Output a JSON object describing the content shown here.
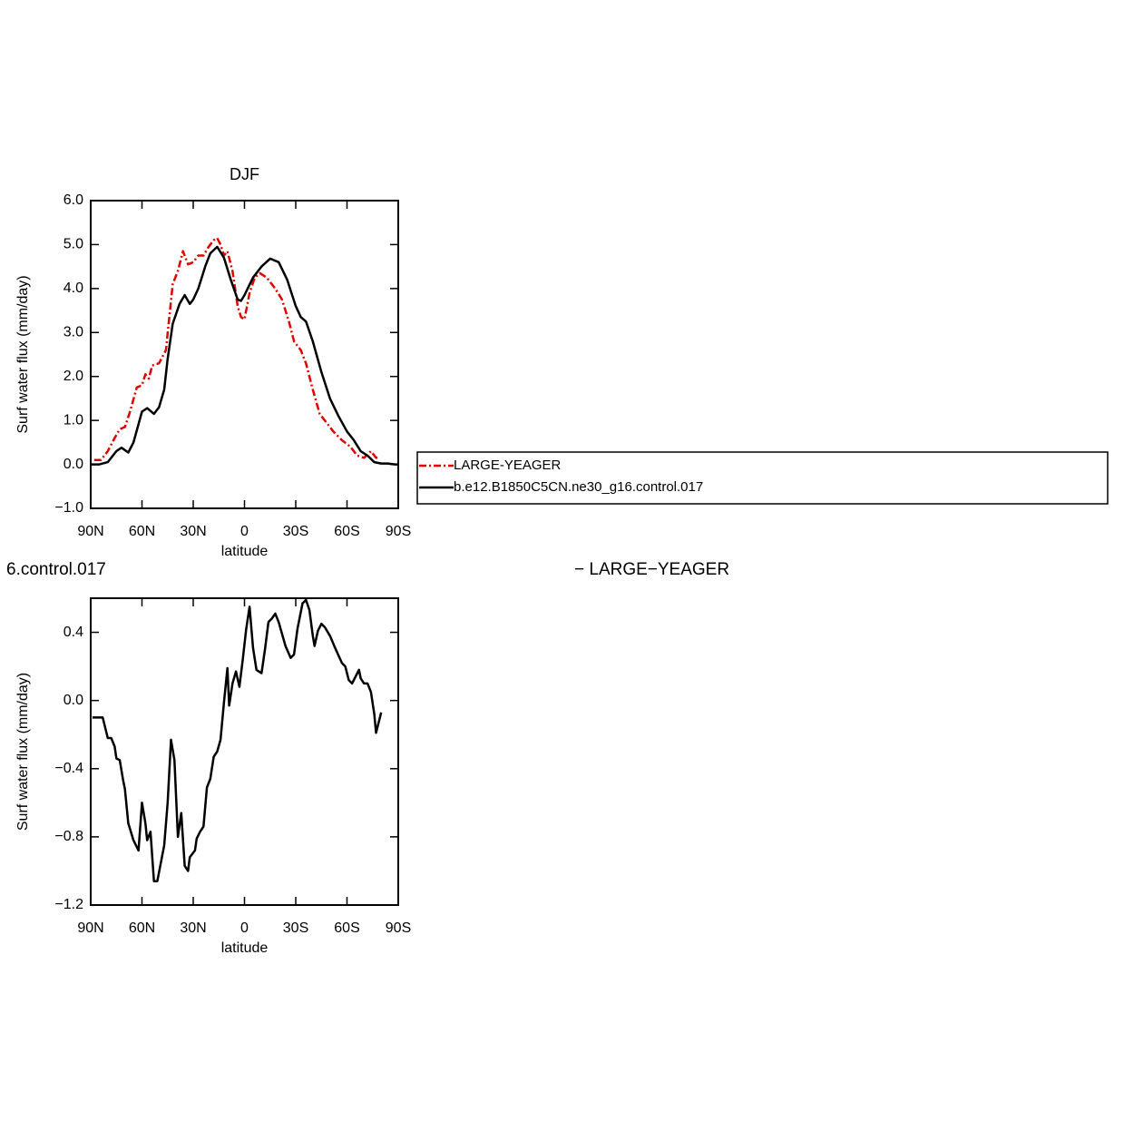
{
  "chart_data": [
    {
      "type": "line",
      "title": "DJF",
      "xlabel": "latitude",
      "ylabel": "Surf water flux (mm/day)",
      "xlim": [
        90,
        -90
      ],
      "xticks": [
        {
          "value": 90,
          "label": "90N"
        },
        {
          "value": 60,
          "label": "60N"
        },
        {
          "value": 30,
          "label": "30N"
        },
        0,
        {
          "value": -30,
          "label": "30S"
        },
        {
          "value": -60,
          "label": "60S"
        },
        {
          "value": -90,
          "label": "90S"
        }
      ],
      "ylim": [
        -1,
        6
      ],
      "yticks": [
        {
          "value": -1,
          "label": "−1.0"
        },
        {
          "value": 0,
          "label": "0.0"
        },
        {
          "value": 1,
          "label": "1.0"
        },
        {
          "value": 2,
          "label": "2.0"
        },
        {
          "value": 3,
          "label": "3.0"
        },
        {
          "value": 4,
          "label": "4.0"
        },
        {
          "value": 5,
          "label": "5.0"
        },
        {
          "value": 6,
          "label": "6.0"
        }
      ],
      "series": [
        {
          "name": "LARGE-YEAGER",
          "color": "#e00000",
          "dash": true,
          "x": [
            88,
            84,
            80,
            76,
            73,
            70,
            67,
            63,
            60,
            58,
            56,
            54,
            50,
            46,
            42,
            39,
            36,
            33,
            30,
            27,
            24,
            21,
            18,
            16,
            14,
            12,
            10,
            7,
            4,
            2,
            0,
            -3,
            -6,
            -9,
            -13,
            -18,
            -22,
            -26,
            -29,
            -33,
            -36,
            -40,
            -44,
            -48,
            -52,
            -57,
            -62,
            -66,
            -70,
            -74,
            -77,
            -79
          ],
          "values": [
            0.1,
            0.1,
            0.3,
            0.6,
            0.8,
            0.85,
            1.2,
            1.75,
            1.8,
            2.05,
            1.95,
            2.25,
            2.3,
            2.6,
            4.1,
            4.4,
            4.85,
            4.55,
            4.6,
            4.75,
            4.75,
            4.95,
            5.1,
            5.15,
            5.0,
            4.75,
            4.85,
            4.4,
            3.6,
            3.35,
            3.3,
            3.9,
            4.25,
            4.35,
            4.25,
            4.0,
            3.75,
            3.25,
            2.8,
            2.6,
            2.3,
            1.7,
            1.15,
            0.95,
            0.75,
            0.55,
            0.4,
            0.2,
            0.15,
            0.3,
            0.15,
            0.15
          ]
        },
        {
          "name": "b.e12.B1850C5CN.ne30_g16.control.017",
          "color": "#000000",
          "dash": false,
          "x": [
            90,
            85,
            80,
            75,
            72,
            68,
            65,
            60,
            57,
            53,
            50,
            47,
            45,
            42,
            38,
            35,
            32,
            30,
            27,
            23,
            20,
            16,
            12,
            8,
            4,
            2,
            0,
            -5,
            -10,
            -15,
            -20,
            -25,
            -30,
            -33,
            -36,
            -40,
            -45,
            -50,
            -55,
            -60,
            -64,
            -68,
            -72,
            -76,
            -80,
            -84,
            -88,
            -90
          ],
          "values": [
            0,
            0,
            0.05,
            0.3,
            0.38,
            0.27,
            0.5,
            1.2,
            1.28,
            1.15,
            1.3,
            1.7,
            2.4,
            3.2,
            3.65,
            3.85,
            3.65,
            3.75,
            4.0,
            4.5,
            4.8,
            4.95,
            4.7,
            4.2,
            3.75,
            3.72,
            3.85,
            4.25,
            4.5,
            4.68,
            4.6,
            4.2,
            3.6,
            3.35,
            3.25,
            2.8,
            2.1,
            1.5,
            1.1,
            0.75,
            0.55,
            0.3,
            0.2,
            0.05,
            0.02,
            0.02,
            0,
            0
          ]
        }
      ]
    },
    {
      "type": "line",
      "title_left": "6.control.017",
      "title_right": "− LARGE−YEAGER",
      "xlabel": "latitude",
      "ylabel": "Surf water flux (mm/day)",
      "xlim": [
        90,
        -90
      ],
      "xticks": [
        {
          "value": 90,
          "label": "90N"
        },
        {
          "value": 60,
          "label": "60N"
        },
        {
          "value": 30,
          "label": "30N"
        },
        0,
        {
          "value": -30,
          "label": "30S"
        },
        {
          "value": -60,
          "label": "60S"
        },
        {
          "value": -90,
          "label": "90S"
        }
      ],
      "ylim": [
        -1.2,
        0.6
      ],
      "yticks": [
        {
          "value": -1.2,
          "label": "−1.2"
        },
        {
          "value": -0.8,
          "label": "−0.8"
        },
        {
          "value": -0.4,
          "label": "−0.4"
        },
        {
          "value": 0,
          "label": "0.0"
        },
        {
          "value": 0.4,
          "label": "0.4"
        }
      ],
      "color": "#000000",
      "x": [
        89,
        83,
        80,
        78,
        76,
        75,
        73,
        71,
        70,
        68,
        65,
        62,
        60,
        58,
        57,
        55,
        53,
        51,
        47,
        45,
        43,
        41,
        39,
        37,
        35,
        33,
        32,
        29,
        28,
        26,
        24,
        22,
        20,
        18,
        16,
        14,
        12,
        10,
        9,
        7,
        5,
        3,
        1,
        -1,
        -3,
        -5,
        -7,
        -10,
        -12,
        -14,
        -16,
        -18,
        -20,
        -24,
        -27,
        -29,
        -31,
        -34,
        -36,
        -38,
        -40,
        -41,
        -43,
        -45,
        -47,
        -50,
        -53,
        -57,
        -59,
        -61,
        -63,
        -65,
        -67,
        -68,
        -70,
        -72,
        -74,
        -76,
        -77,
        -80
      ],
      "values": [
        -0.1,
        -0.1,
        -0.22,
        -0.22,
        -0.27,
        -0.34,
        -0.35,
        -0.47,
        -0.52,
        -0.72,
        -0.82,
        -0.88,
        -0.6,
        -0.72,
        -0.82,
        -0.77,
        -1.06,
        -1.06,
        -0.85,
        -0.6,
        -0.23,
        -0.35,
        -0.8,
        -0.66,
        -0.97,
        -1.0,
        -0.92,
        -0.88,
        -0.81,
        -0.77,
        -0.74,
        -0.51,
        -0.46,
        -0.33,
        -0.3,
        -0.23,
        -0.01,
        0.19,
        -0.03,
        0.1,
        0.17,
        0.08,
        0.24,
        0.42,
        0.55,
        0.31,
        0.18,
        0.16,
        0.3,
        0.46,
        0.48,
        0.51,
        0.46,
        0.32,
        0.25,
        0.27,
        0.42,
        0.57,
        0.59,
        0.53,
        0.38,
        0.32,
        0.41,
        0.45,
        0.43,
        0.38,
        0.31,
        0.22,
        0.2,
        0.12,
        0.1,
        0.14,
        0.18,
        0.13,
        0.1,
        0.1,
        0.05,
        -0.08,
        -0.19,
        -0.07
      ]
    }
  ]
}
